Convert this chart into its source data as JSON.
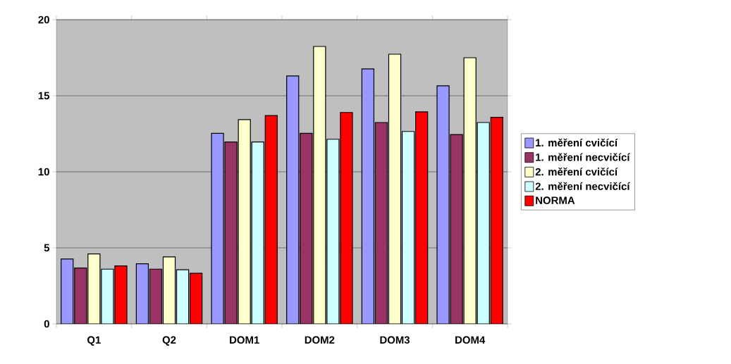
{
  "chart_data": {
    "type": "bar",
    "categories": [
      "Q1",
      "Q2",
      "DOM1",
      "DOM2",
      "DOM3",
      "DOM4"
    ],
    "series": [
      {
        "name": "1. měření cvičící",
        "color": "#9999ff",
        "values": [
          4.26,
          3.95,
          12.53,
          16.3,
          16.76,
          15.65
        ]
      },
      {
        "name": "1. měření necvičící",
        "color": "#993366",
        "values": [
          3.67,
          3.6,
          11.96,
          12.53,
          13.24,
          12.45
        ]
      },
      {
        "name": "2. měření cvičící",
        "color": "#ffffcc",
        "values": [
          4.6,
          4.4,
          13.43,
          18.24,
          17.73,
          17.5
        ]
      },
      {
        "name": "2. měření necvičící",
        "color": "#ccffff",
        "values": [
          3.6,
          3.56,
          11.96,
          12.14,
          12.65,
          13.24
        ]
      },
      {
        "name": "NORMA",
        "color": "#ff0000",
        "values": [
          3.81,
          3.33,
          13.7,
          13.9,
          13.94,
          13.58
        ]
      }
    ],
    "ylim": [
      0,
      20
    ],
    "yticks": [
      0,
      5,
      10,
      15,
      20
    ],
    "grid": "y",
    "legend": "right"
  }
}
